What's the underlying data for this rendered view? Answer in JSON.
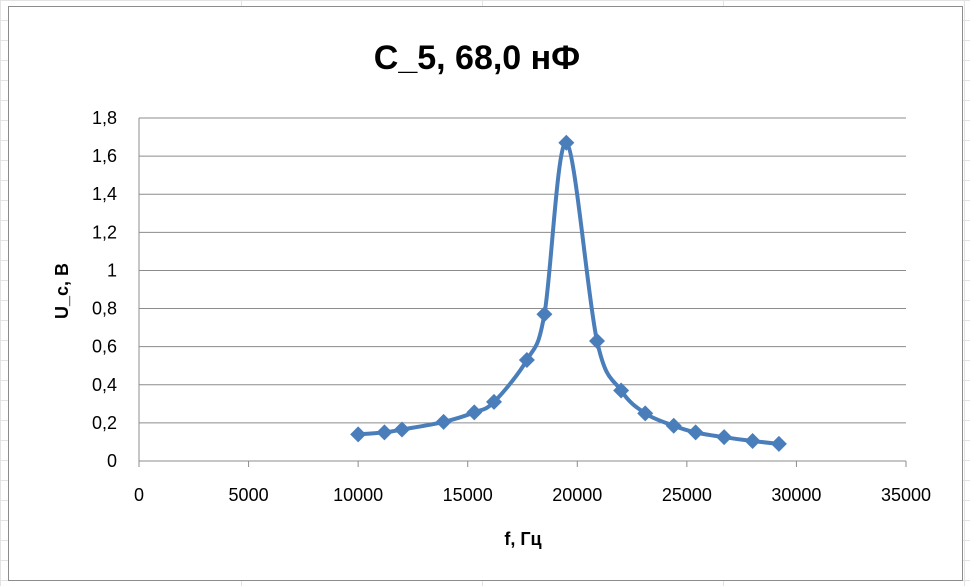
{
  "chart_data": {
    "type": "scatter",
    "title": "C_5, 68,0  нФ",
    "xlabel": "f, Гц",
    "ylabel": "U_c, В",
    "xlim": [
      0,
      35000
    ],
    "ylim": [
      0,
      1.8
    ],
    "x_ticks": [
      "0",
      "5000",
      "10000",
      "15000",
      "20000",
      "25000",
      "30000",
      "35000"
    ],
    "y_ticks": [
      "0",
      "0,2",
      "0,4",
      "0,6",
      "0,8",
      "1",
      "1,2",
      "1,4",
      "1,6",
      "1,8"
    ],
    "grid": "horizontal",
    "legend": "none",
    "line": "smooth",
    "marker": "diamond",
    "series_color": "#4a7ebb",
    "series": [
      {
        "x": [
          10000,
          11200,
          12000,
          13900,
          15300,
          16200,
          17700,
          18500,
          19500,
          20900,
          22000,
          23100,
          24400,
          25400,
          26700,
          28000,
          29200
        ],
        "y": [
          0.14,
          0.15,
          0.165,
          0.205,
          0.255,
          0.31,
          0.53,
          0.77,
          1.67,
          0.63,
          0.37,
          0.25,
          0.185,
          0.15,
          0.125,
          0.105,
          0.09
        ]
      }
    ]
  }
}
